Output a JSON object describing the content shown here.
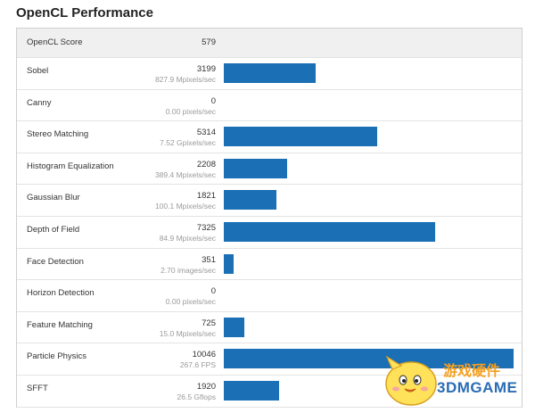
{
  "title": "OpenCL Performance",
  "header": {
    "label": "OpenCL Score",
    "score": "579"
  },
  "max_value": 10046,
  "rows": [
    {
      "name": "Sobel",
      "score": "3199",
      "sub": "827.9 Mpixels/sec",
      "value": 3199
    },
    {
      "name": "Canny",
      "score": "0",
      "sub": "0.00 pixels/sec",
      "value": 0
    },
    {
      "name": "Stereo Matching",
      "score": "5314",
      "sub": "7.52 Gpixels/sec",
      "value": 5314
    },
    {
      "name": "Histogram Equalization",
      "score": "2208",
      "sub": "389.4 Mpixels/sec",
      "value": 2208
    },
    {
      "name": "Gaussian Blur",
      "score": "1821",
      "sub": "100.1 Mpixels/sec",
      "value": 1821
    },
    {
      "name": "Depth of Field",
      "score": "7325",
      "sub": "84.9 Mpixels/sec",
      "value": 7325
    },
    {
      "name": "Face Detection",
      "score": "351",
      "sub": "2.70 images/sec",
      "value": 351
    },
    {
      "name": "Horizon Detection",
      "score": "0",
      "sub": "0.00 pixels/sec",
      "value": 0
    },
    {
      "name": "Feature Matching",
      "score": "725",
      "sub": "15.0 Mpixels/sec",
      "value": 725
    },
    {
      "name": "Particle Physics",
      "score": "10046",
      "sub": "267.6 FPS",
      "value": 10046
    },
    {
      "name": "SFFT",
      "score": "1920",
      "sub": "26.5 Gflops",
      "value": 1920
    }
  ],
  "bar_color": "#1b6fb5",
  "watermark": {
    "line1": "游戏硬件",
    "line2": "3DMGAME"
  }
}
